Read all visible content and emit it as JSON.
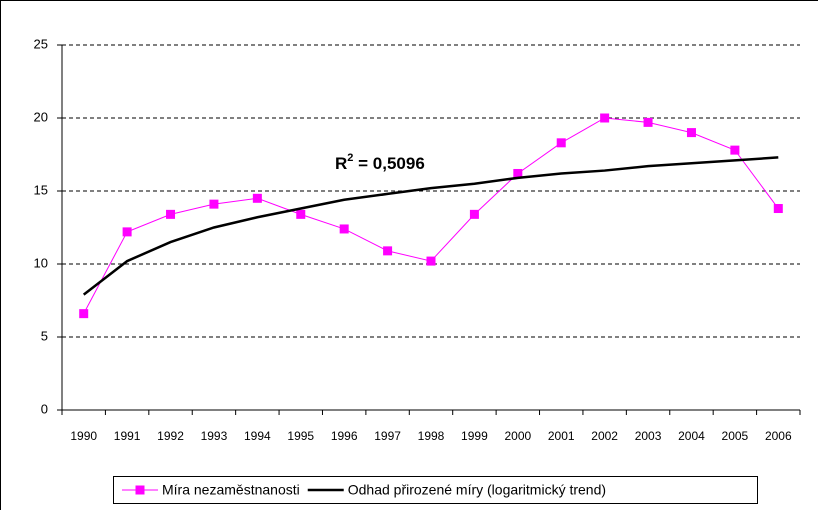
{
  "chart_data": {
    "type": "line",
    "categories": [
      "1990",
      "1991",
      "1992",
      "1993",
      "1994",
      "1995",
      "1996",
      "1997",
      "1998",
      "1999",
      "2000",
      "2001",
      "2002",
      "2003",
      "2004",
      "2005",
      "2006"
    ],
    "series": [
      {
        "name": "Míra nezaměstnanosti",
        "color": "#ff00ff",
        "marker": "square",
        "values": [
          6.6,
          12.2,
          13.4,
          14.1,
          14.5,
          13.4,
          12.4,
          10.9,
          10.2,
          13.4,
          16.2,
          18.3,
          20.0,
          19.7,
          19.0,
          17.8,
          13.8
        ]
      },
      {
        "name": "Odhad přirozené míry (logaritmický trend)",
        "color": "#000000",
        "marker": "none",
        "values": [
          7.9,
          10.2,
          11.5,
          12.5,
          13.2,
          13.8,
          14.4,
          14.8,
          15.2,
          15.5,
          15.9,
          16.2,
          16.4,
          16.7,
          16.9,
          17.1,
          17.3
        ]
      }
    ],
    "annotation": {
      "base": "R",
      "sup": "2",
      "rest": " = 0,5096"
    },
    "ylim": [
      0,
      25
    ],
    "yticks": [
      0,
      5,
      10,
      15,
      20,
      25
    ],
    "grid": true,
    "legend": "bottom"
  }
}
